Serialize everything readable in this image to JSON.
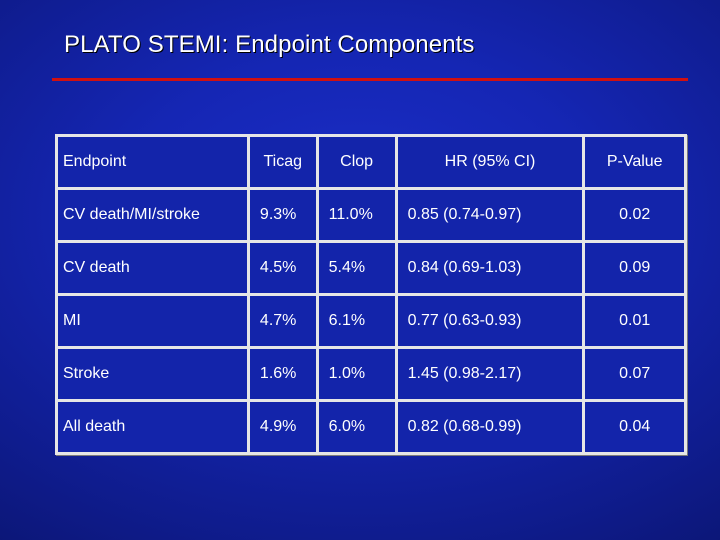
{
  "slide": {
    "title": "PLATO STEMI: Endpoint Components"
  },
  "table": {
    "headers": [
      "Endpoint",
      "Ticag",
      "Clop",
      "HR (95% CI)",
      "P-Value"
    ],
    "rows": [
      [
        "CV death/MI/stroke",
        "9.3%",
        "11.0%",
        "0.85 (0.74-0.97)",
        "0.02"
      ],
      [
        "CV death",
        "4.5%",
        "5.4%",
        "0.84 (0.69-1.03)",
        "0.09"
      ],
      [
        "MI",
        "4.7%",
        "6.1%",
        "0.77 (0.63-0.93)",
        "0.01"
      ],
      [
        "Stroke",
        "1.6%",
        "1.0%",
        "1.45 (0.98-2.17)",
        "0.07"
      ],
      [
        "All death",
        "4.9%",
        "6.0%",
        "0.82 (0.68-0.99)",
        "0.04"
      ]
    ]
  },
  "colors": {
    "background": "#1526b4",
    "title_rule": "#d11010",
    "grid_lines": "#e6e6e6",
    "text": "#ffffff"
  }
}
